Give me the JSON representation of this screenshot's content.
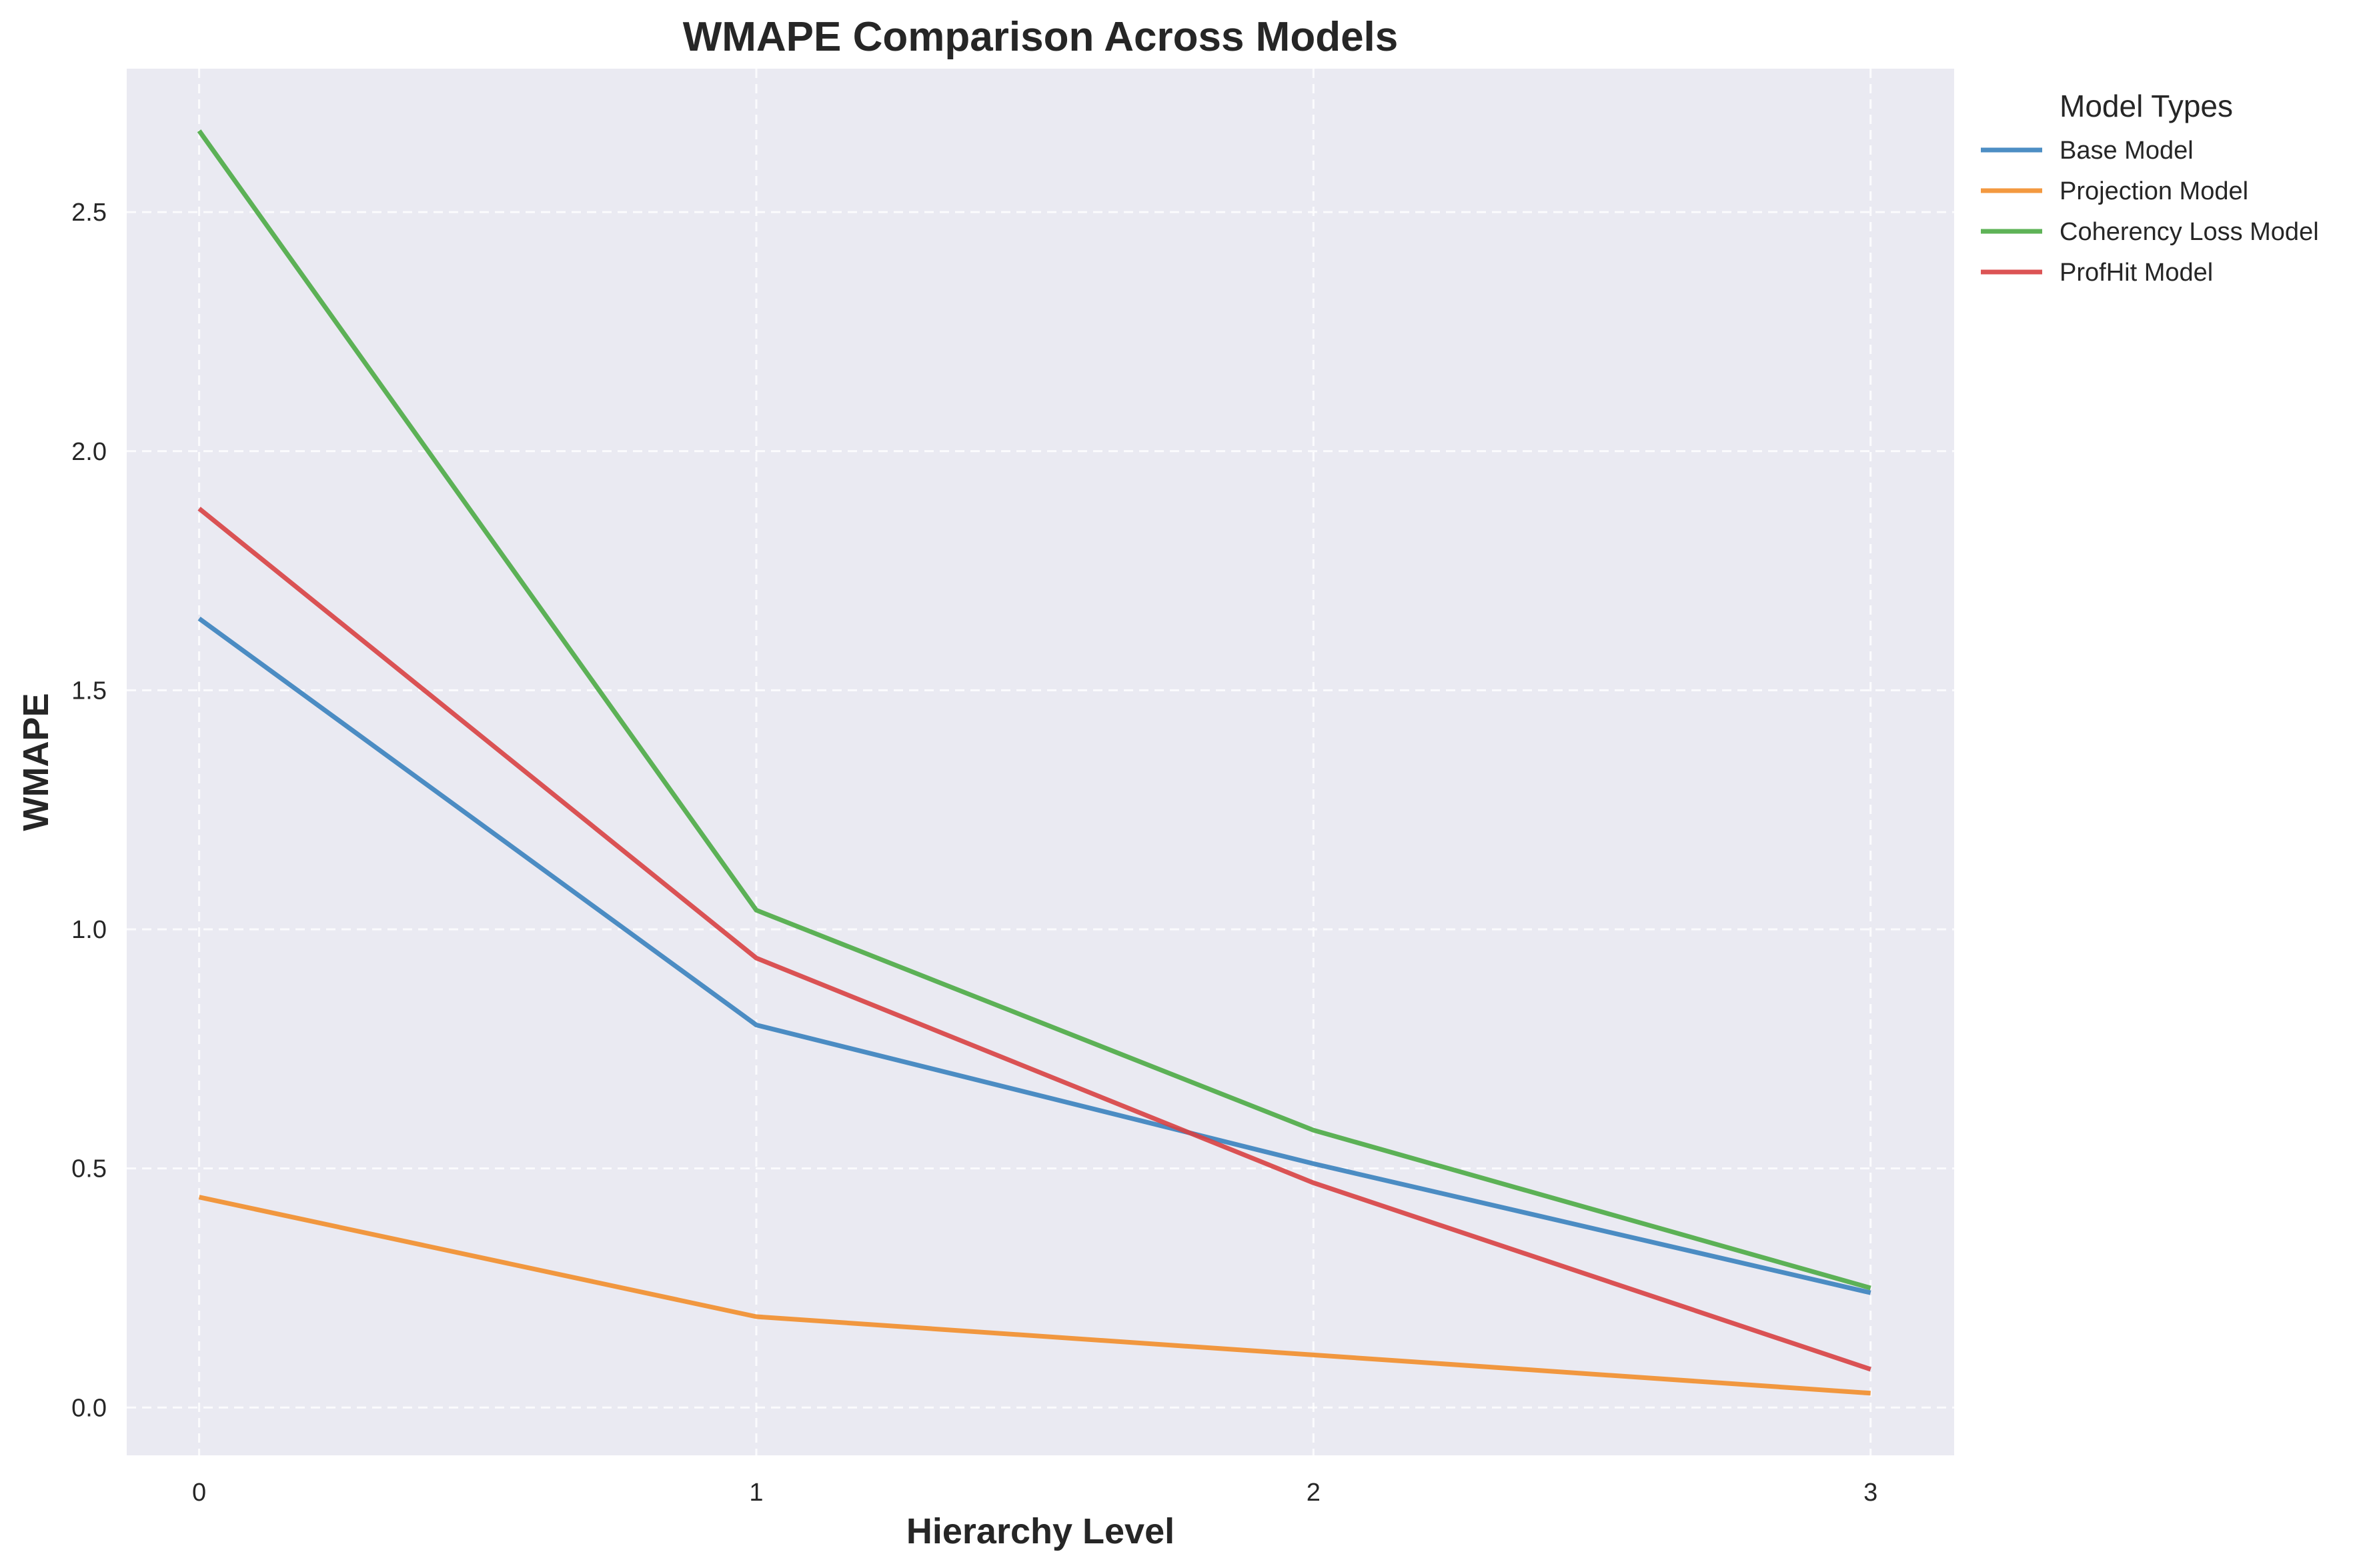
{
  "chart_data": {
    "type": "line",
    "title": "WMAPE Comparison Across Models",
    "xlabel": "Hierarchy Level",
    "ylabel": "WMAPE",
    "x": [
      0,
      1,
      2,
      3
    ],
    "xticks": [
      "0",
      "1",
      "2",
      "3"
    ],
    "yticks": [
      "0.0",
      "0.5",
      "1.0",
      "1.5",
      "2.0",
      "2.5"
    ],
    "xlim": [
      -0.13,
      3.15
    ],
    "ylim": [
      -0.1,
      2.8
    ],
    "grid": true,
    "legend": {
      "title": "Model Types",
      "placement": "outside-top-right"
    },
    "series": [
      {
        "name": "Base Model",
        "color": "#3A82BE",
        "values": [
          1.65,
          0.8,
          0.51,
          0.24
        ]
      },
      {
        "name": "Projection Model",
        "color": "#F28E2B",
        "values": [
          0.44,
          0.19,
          0.11,
          0.03
        ]
      },
      {
        "name": "Coherency Loss Model",
        "color": "#4CAB45",
        "values": [
          2.67,
          1.04,
          0.58,
          0.25
        ]
      },
      {
        "name": "ProfHit Model",
        "color": "#D84143",
        "values": [
          1.88,
          0.94,
          0.47,
          0.08
        ]
      }
    ],
    "plot_background": "#EAEAF2"
  }
}
